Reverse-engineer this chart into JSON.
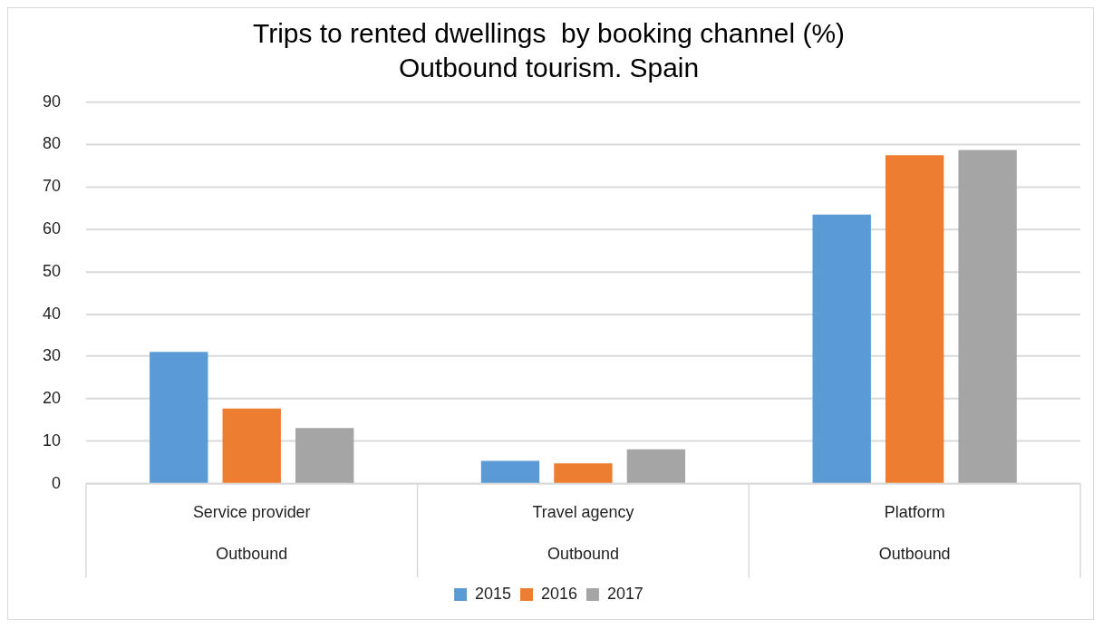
{
  "chart_data": {
    "type": "bar",
    "title": "Trips to rented dwellings  by booking channel (%)",
    "subtitle": "Outbound tourism. Spain",
    "categories": [
      "Service provider\nOutbound",
      "Travel agency\nOutbound",
      "Platform\nOutbound"
    ],
    "series": [
      {
        "name": "2015",
        "color": "#5b9bd5",
        "values": [
          31.1,
          5.4,
          63.5
        ]
      },
      {
        "name": "2016",
        "color": "#ed7d31",
        "values": [
          17.7,
          4.8,
          77.5
        ]
      },
      {
        "name": "2017",
        "color": "#a5a5a5",
        "values": [
          13.1,
          8.1,
          78.7
        ]
      }
    ],
    "ylim": [
      0,
      90
    ],
    "yticks": [
      0,
      10,
      20,
      30,
      40,
      50,
      60,
      70,
      80,
      90
    ],
    "grid": "y",
    "legend": "bottom"
  }
}
